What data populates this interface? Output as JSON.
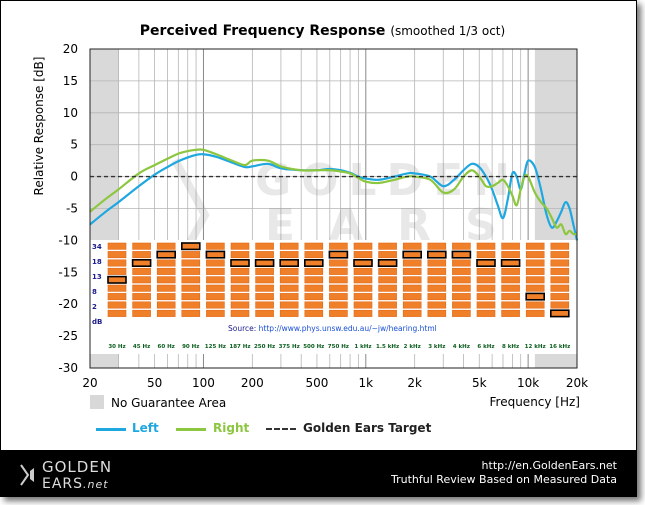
{
  "chart_data": {
    "type": "line",
    "title": "Perceived Frequency Response",
    "subtitle": "(smoothed 1/3 oct)",
    "xlabel": "Frequency [Hz]",
    "ylabel": "Relative Response [dB]",
    "xscale": "log",
    "xlim": [
      20,
      20000
    ],
    "ylim": [
      -30,
      20
    ],
    "grid": true,
    "xticks": [
      "20",
      "50",
      "100",
      "200",
      "500",
      "1k",
      "2k",
      "5k",
      "10k",
      "20k"
    ],
    "yticks": [
      "20",
      "15",
      "10",
      "5",
      "0",
      "-5",
      "-10",
      "-15",
      "-20",
      "-25",
      "-30"
    ],
    "no_guarantee_regions": [
      [
        20,
        30
      ],
      [
        11000,
        20000
      ]
    ],
    "no_guarantee_label": "No Guarantee Area",
    "series": [
      {
        "name": "Left",
        "color": "#1fa7e0",
        "x": [
          20,
          25,
          30,
          40,
          50,
          60,
          70,
          80,
          90,
          100,
          120,
          150,
          180,
          200,
          250,
          300,
          400,
          500,
          600,
          700,
          800,
          900,
          1000,
          1200,
          1500,
          1800,
          2000,
          2500,
          3000,
          3500,
          4000,
          4500,
          5000,
          5500,
          6000,
          6500,
          7000,
          7500,
          8000,
          8500,
          9000,
          9500,
          10000,
          11000,
          12000,
          13000,
          14000,
          15000,
          16000,
          17000,
          18000,
          19000,
          20000
        ],
        "y": [
          -7.5,
          -5.5,
          -4,
          -1.5,
          0.3,
          1.5,
          2.4,
          3,
          3.4,
          3.5,
          3.1,
          2.2,
          1.5,
          1.6,
          2.0,
          1.3,
          1.0,
          1.0,
          1.2,
          1.0,
          0.6,
          0,
          -0.3,
          -0.5,
          0,
          0.5,
          0.5,
          0,
          -1.5,
          -0.5,
          1,
          2,
          1.5,
          0,
          -2,
          -4.5,
          -6.5,
          -3.5,
          0.5,
          0,
          -2,
          0.5,
          2.5,
          1.5,
          -2,
          -6,
          -8,
          -7,
          -5.5,
          -4,
          -5,
          -7.5,
          -10
        ]
      },
      {
        "name": "Right",
        "color": "#8dc63f",
        "x": [
          20,
          25,
          30,
          40,
          50,
          60,
          70,
          80,
          90,
          100,
          120,
          150,
          180,
          200,
          250,
          300,
          400,
          500,
          600,
          700,
          800,
          900,
          1000,
          1200,
          1500,
          1800,
          2000,
          2500,
          3000,
          3500,
          4000,
          4500,
          5000,
          5500,
          6000,
          6500,
          7000,
          7500,
          8000,
          8500,
          9000,
          9500,
          10000,
          11000,
          12000,
          13000,
          14000,
          15000,
          16000,
          17000,
          18000,
          19000,
          20000
        ],
        "y": [
          -5.5,
          -3.5,
          -2,
          0.5,
          1.8,
          2.8,
          3.6,
          4.0,
          4.2,
          4.2,
          3.5,
          2.5,
          1.8,
          2.5,
          2.5,
          1.6,
          1.0,
          1.0,
          1.0,
          0.8,
          0.5,
          -0.2,
          -0.8,
          -1,
          -0.5,
          0,
          0,
          -0.5,
          -2.5,
          -2,
          0,
          1,
          0,
          -1.5,
          -1.5,
          -1,
          -0.5,
          -1.5,
          -3,
          -4.5,
          -2,
          0,
          0,
          -2.5,
          -4,
          -5,
          -6.5,
          -8,
          -7.5,
          -9,
          -8.5,
          -9,
          -9
        ]
      },
      {
        "name": "Golden Ears Target",
        "color": "#333333",
        "dashed": true,
        "x": [
          20,
          20000
        ],
        "y": [
          0,
          0
        ]
      }
    ],
    "inset": {
      "type": "heatmap",
      "db_labels": [
        "34",
        "18",
        "13",
        "8",
        "2",
        "dB"
      ],
      "band_labels": [
        "30 Hz",
        "45 Hz",
        "60 Hz",
        "90 Hz",
        "125 Hz",
        "187 Hz",
        "250 Hz",
        "375 Hz",
        "500 Hz",
        "750 Hz",
        "1 kHz",
        "1.5 kHz",
        "2 kHz",
        "3 kHz",
        "4 kHz",
        "6 kHz",
        "8 kHz",
        "12 kHz",
        "16 kHz"
      ],
      "rows": 9,
      "highlight_row": [
        4,
        2,
        1,
        0,
        1,
        2,
        2,
        2,
        2,
        1,
        2,
        2,
        1,
        1,
        1,
        2,
        2,
        6,
        8
      ],
      "source_label": "Source: ",
      "source_url": "http://www.phys.unsw.edu.au/~jw/hearing.html"
    }
  },
  "watermark": {
    "line1": "GOLDEN",
    "line2": "EARS"
  },
  "legend": {
    "left": "Left",
    "right": "Right",
    "target": "Golden Ears Target"
  },
  "footer": {
    "logo_top": "GOLDEN",
    "logo_bottom": "EARS",
    "logo_suffix": ".net",
    "url": "http://en.GoldenEars.net",
    "tagline": "Truthful Review Based on Measured Data"
  }
}
